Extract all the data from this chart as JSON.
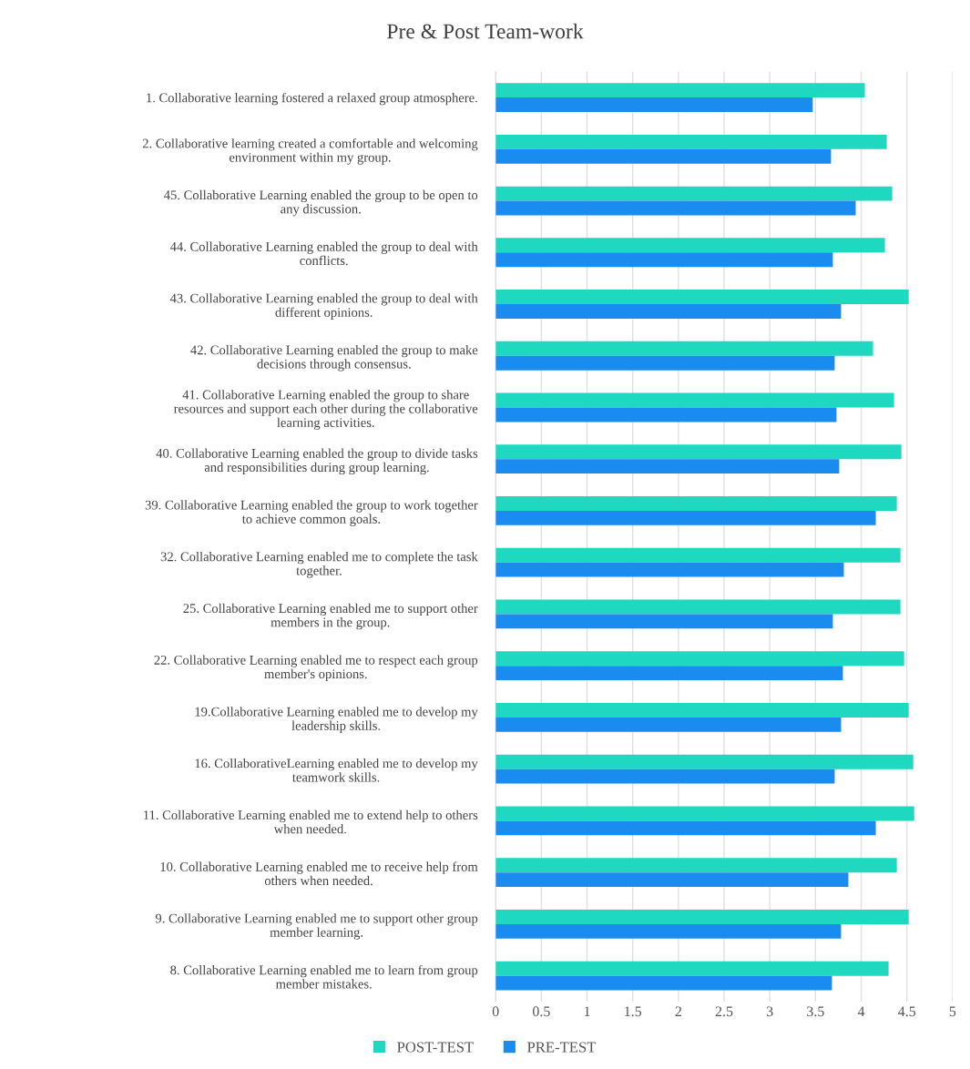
{
  "chart_data": {
    "type": "bar",
    "orientation": "horizontal",
    "title": "Pre & Post Team-work",
    "categories": [
      "1. Collaborative learning fostered a relaxed group atmosphere.",
      "2. Collaborative learning created a comfortable and welcoming\nenvironment within my group.",
      "45. Collaborative Learning enabled the group to be open to\nany discussion.",
      "44. Collaborative Learning enabled the group to deal with\nconflicts.",
      "43. Collaborative Learning enabled the group to deal with\ndifferent opinions.",
      "42. Collaborative Learning enabled the group to make\ndecisions through consensus.",
      "41. Collaborative Learning enabled the group to share\nresources and support each other during the collaborative\nlearning activities.",
      "40. Collaborative Learning enabled the group to divide tasks\nand responsibilities during group learning.",
      "39. Collaborative Learning enabled the group to work together\nto achieve common goals.",
      "32. Collaborative Learning enabled me to complete the task\ntogether.",
      "25. Collaborative Learning enabled me to support other\nmembers in the group.",
      "22. Collaborative Learning enabled me to respect each group\nmember's opinions.",
      "19.Collaborative Learning enabled me to develop my\nleadership skills.",
      "16. CollaborativeLearning enabled me to develop my\nteamwork skills.",
      "11. Collaborative Learning enabled me to extend help to others\nwhen needed.",
      "10. Collaborative Learning enabled me to receive help from\nothers when needed.",
      "9. Collaborative Learning enabled me to support other group\nmember learning.",
      "8. Collaborative Learning enabled me to learn from group\nmember mistakes."
    ],
    "series": [
      {
        "name": "POST-TEST",
        "color": "#1ed8c0",
        "values": [
          4.04,
          4.28,
          4.34,
          4.26,
          4.52,
          4.13,
          4.36,
          4.44,
          4.39,
          4.43,
          4.43,
          4.47,
          4.52,
          4.57,
          4.58,
          4.39,
          4.52,
          4.3
        ]
      },
      {
        "name": "PRE-TEST",
        "color": "#1a8cf0",
        "values": [
          3.47,
          3.67,
          3.94,
          3.69,
          3.78,
          3.71,
          3.73,
          3.76,
          4.16,
          3.81,
          3.69,
          3.8,
          3.78,
          3.71,
          4.16,
          3.86,
          3.78,
          3.68
        ]
      }
    ],
    "xlim": [
      0,
      5
    ],
    "xticks": [
      0,
      0.5,
      1,
      1.5,
      2,
      2.5,
      3,
      3.5,
      4,
      4.5,
      5
    ],
    "grid": "x",
    "legend": "bottom"
  }
}
